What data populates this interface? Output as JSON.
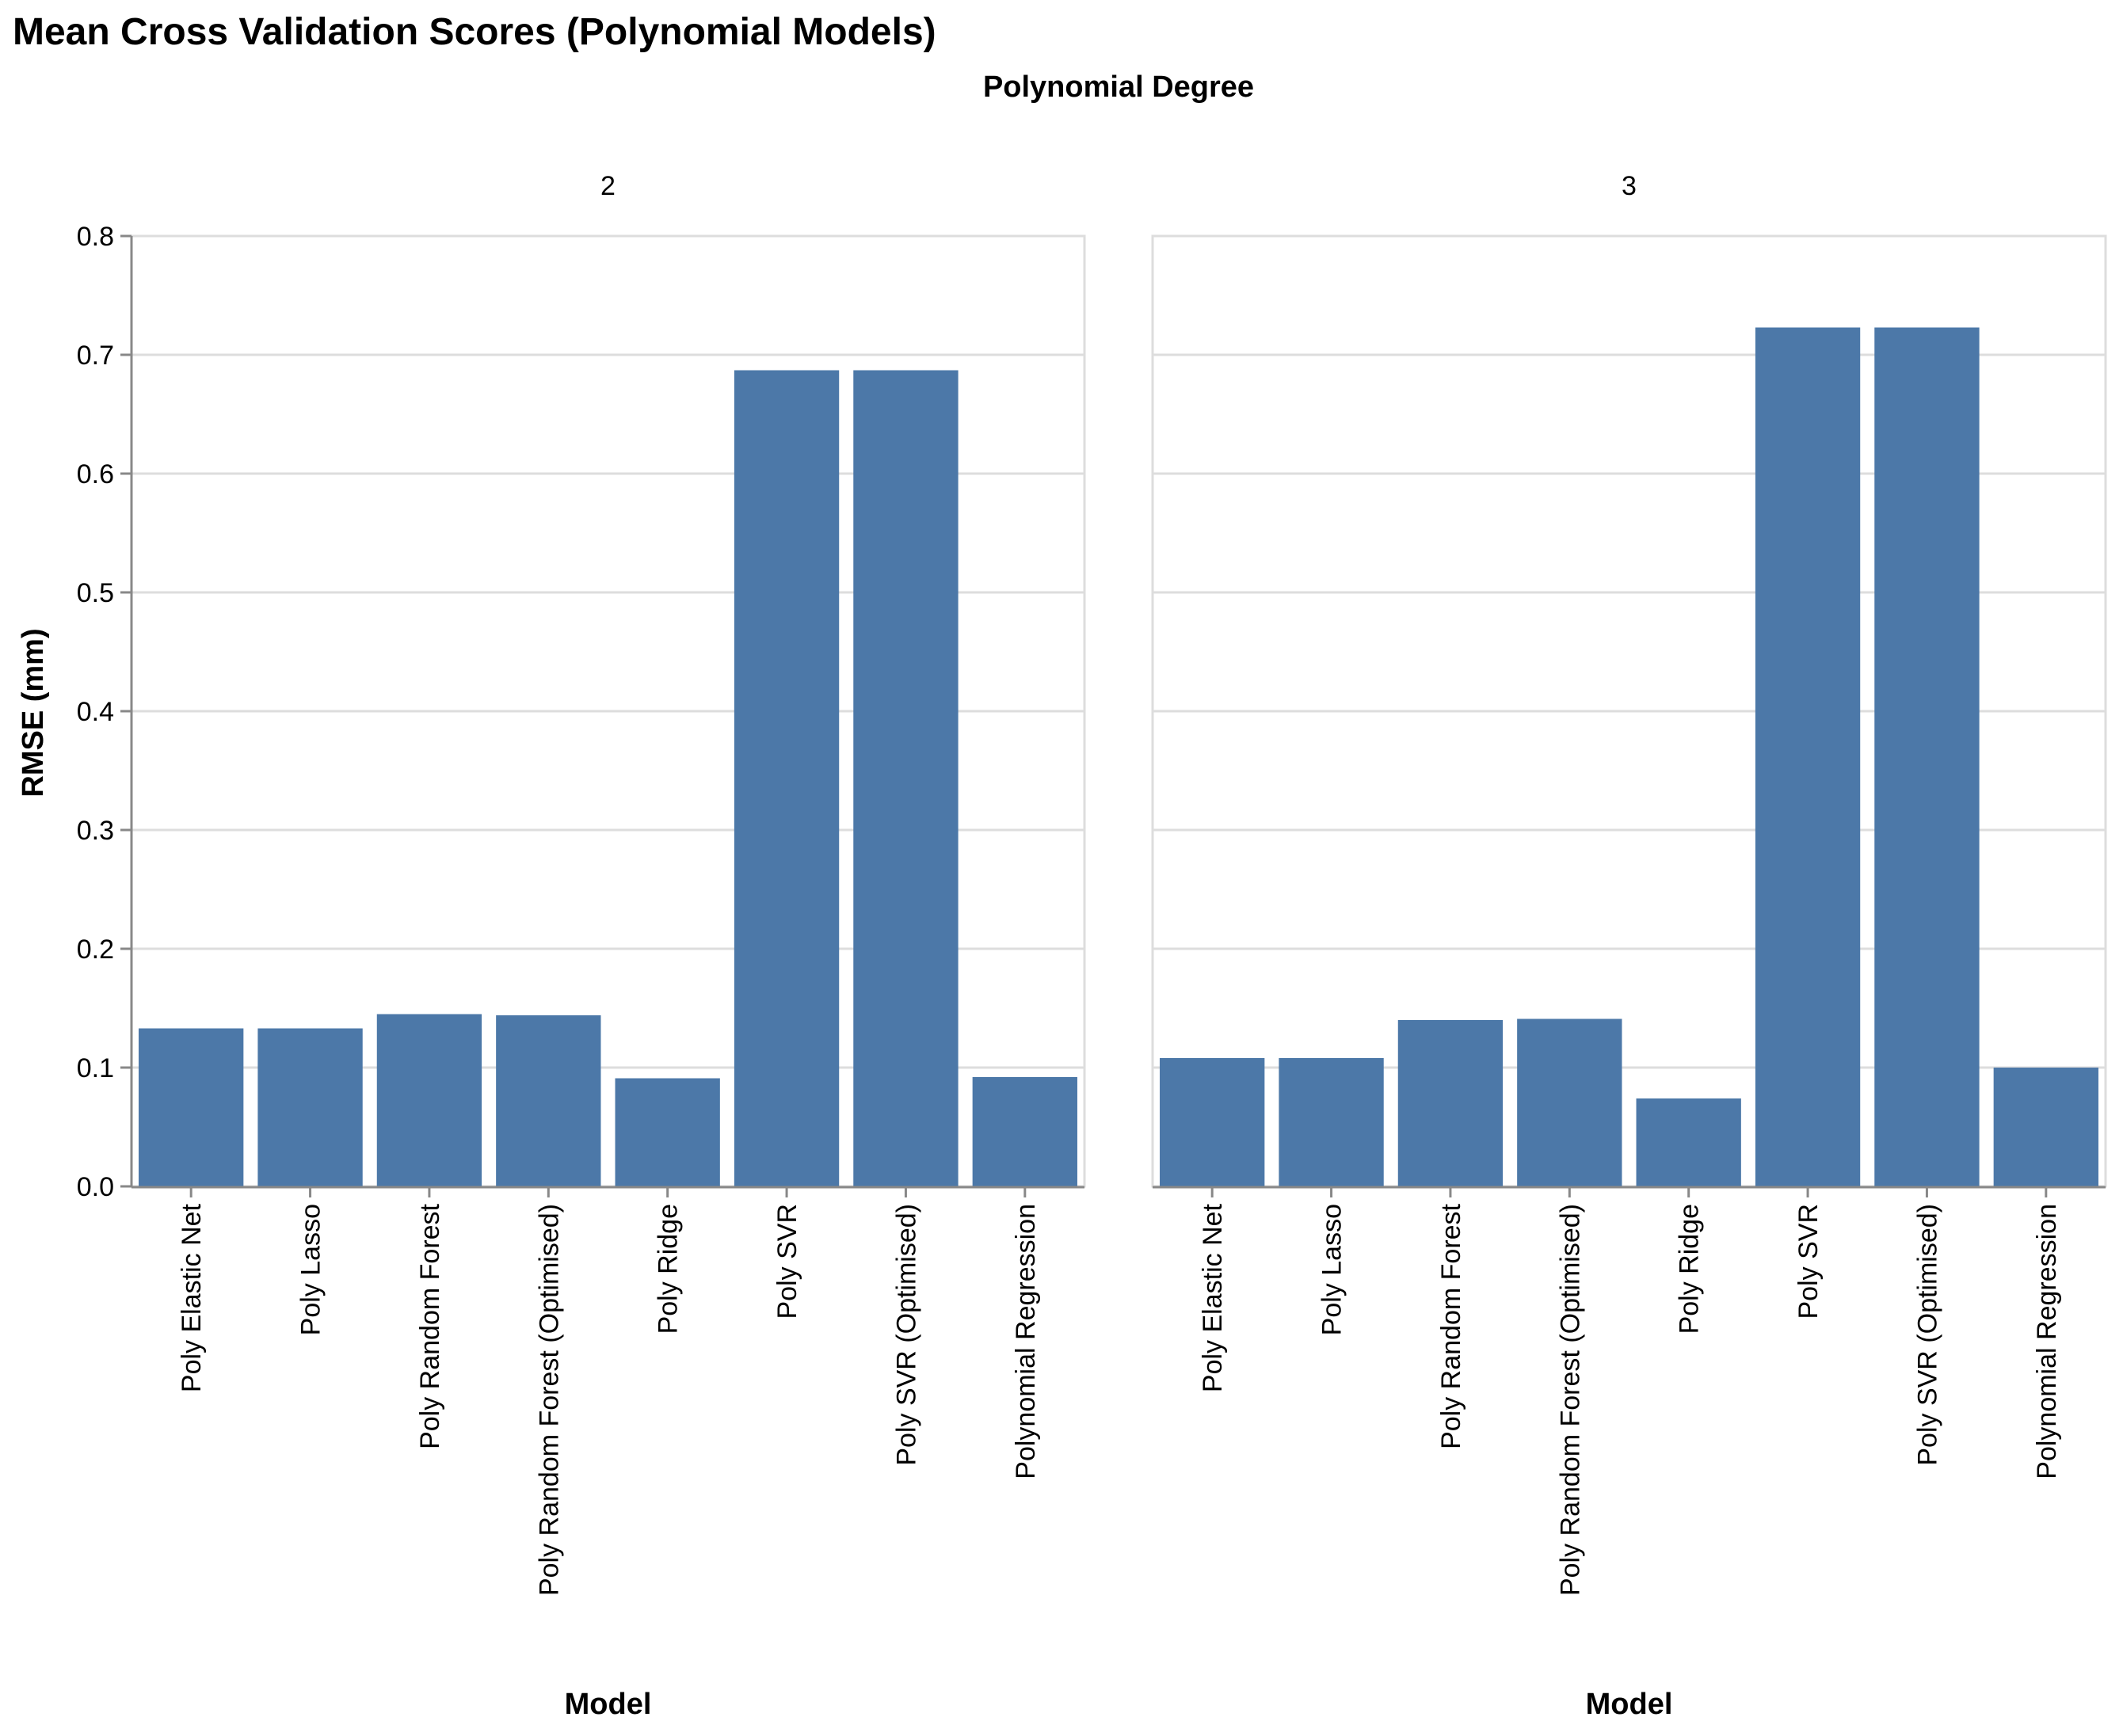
{
  "chart_data": {
    "type": "bar",
    "title": "Mean Cross Validation Scores (Polynomial Models)",
    "facet_title": "Polynomial Degree",
    "xlabel": "Model",
    "ylabel": "RMSE (mm)",
    "ylim": [
      0,
      0.8
    ],
    "yticks": [
      "0.0",
      "0.1",
      "0.2",
      "0.3",
      "0.4",
      "0.5",
      "0.6",
      "0.7",
      "0.8"
    ],
    "grid": true,
    "bar_color": "#4c78a8",
    "categories": [
      "Poly Elastic Net",
      "Poly Lasso",
      "Poly Random Forest",
      "Poly Random Forest (Optimised)",
      "Poly Ridge",
      "Poly SVR",
      "Poly SVR (Optimised)",
      "Polynomial Regression"
    ],
    "facets": [
      {
        "label": "2",
        "values": [
          0.133,
          0.133,
          0.145,
          0.144,
          0.091,
          0.687,
          0.687,
          0.092
        ]
      },
      {
        "label": "3",
        "values": [
          0.108,
          0.108,
          0.14,
          0.141,
          0.074,
          0.723,
          0.723,
          0.1
        ]
      }
    ]
  }
}
